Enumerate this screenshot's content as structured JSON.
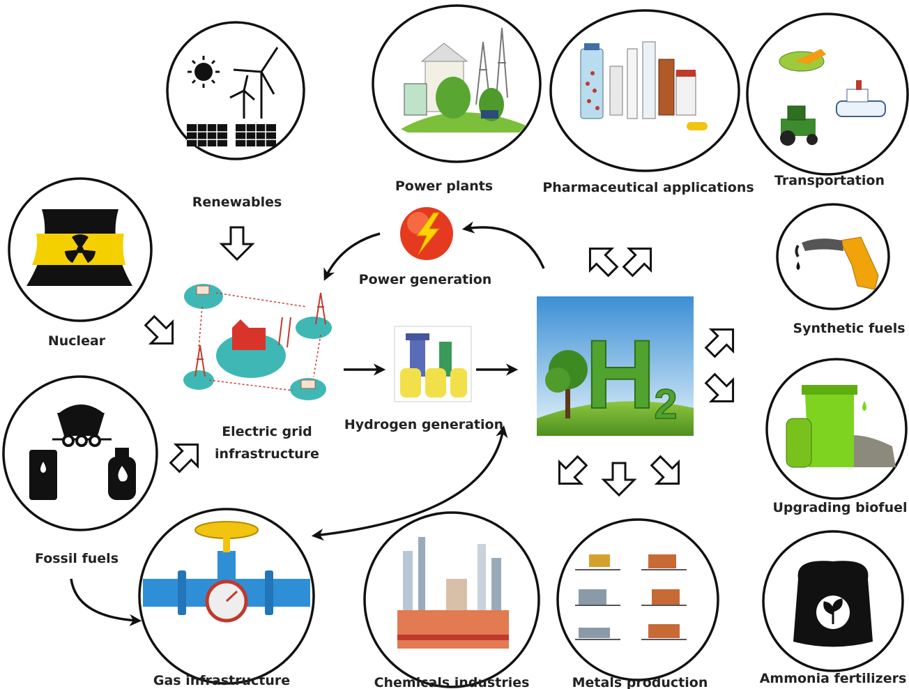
{
  "nodes": [
    {
      "label": "Renewables"
    },
    {
      "label": "Power plants"
    },
    {
      "label": "Pharmaceutical applications"
    },
    {
      "label": "Transportation"
    },
    {
      "label": "Nuclear"
    },
    {
      "label": "Power generation"
    },
    {
      "label": "Synthetic fuels"
    },
    {
      "label_lines": [
        "Electric grid",
        "infrastructure"
      ]
    },
    {
      "label": "Hydrogen generation"
    },
    {
      "label": "Upgrading biofuel"
    },
    {
      "label": "Fossil fuels"
    },
    {
      "label": "Gas infrastructure"
    },
    {
      "label": "Chemicals industries"
    },
    {
      "label": "Metals production"
    },
    {
      "label": "Ammonia fertilizers"
    }
  ],
  "hydrogen": {
    "symbol": "H",
    "subscript": "2"
  }
}
